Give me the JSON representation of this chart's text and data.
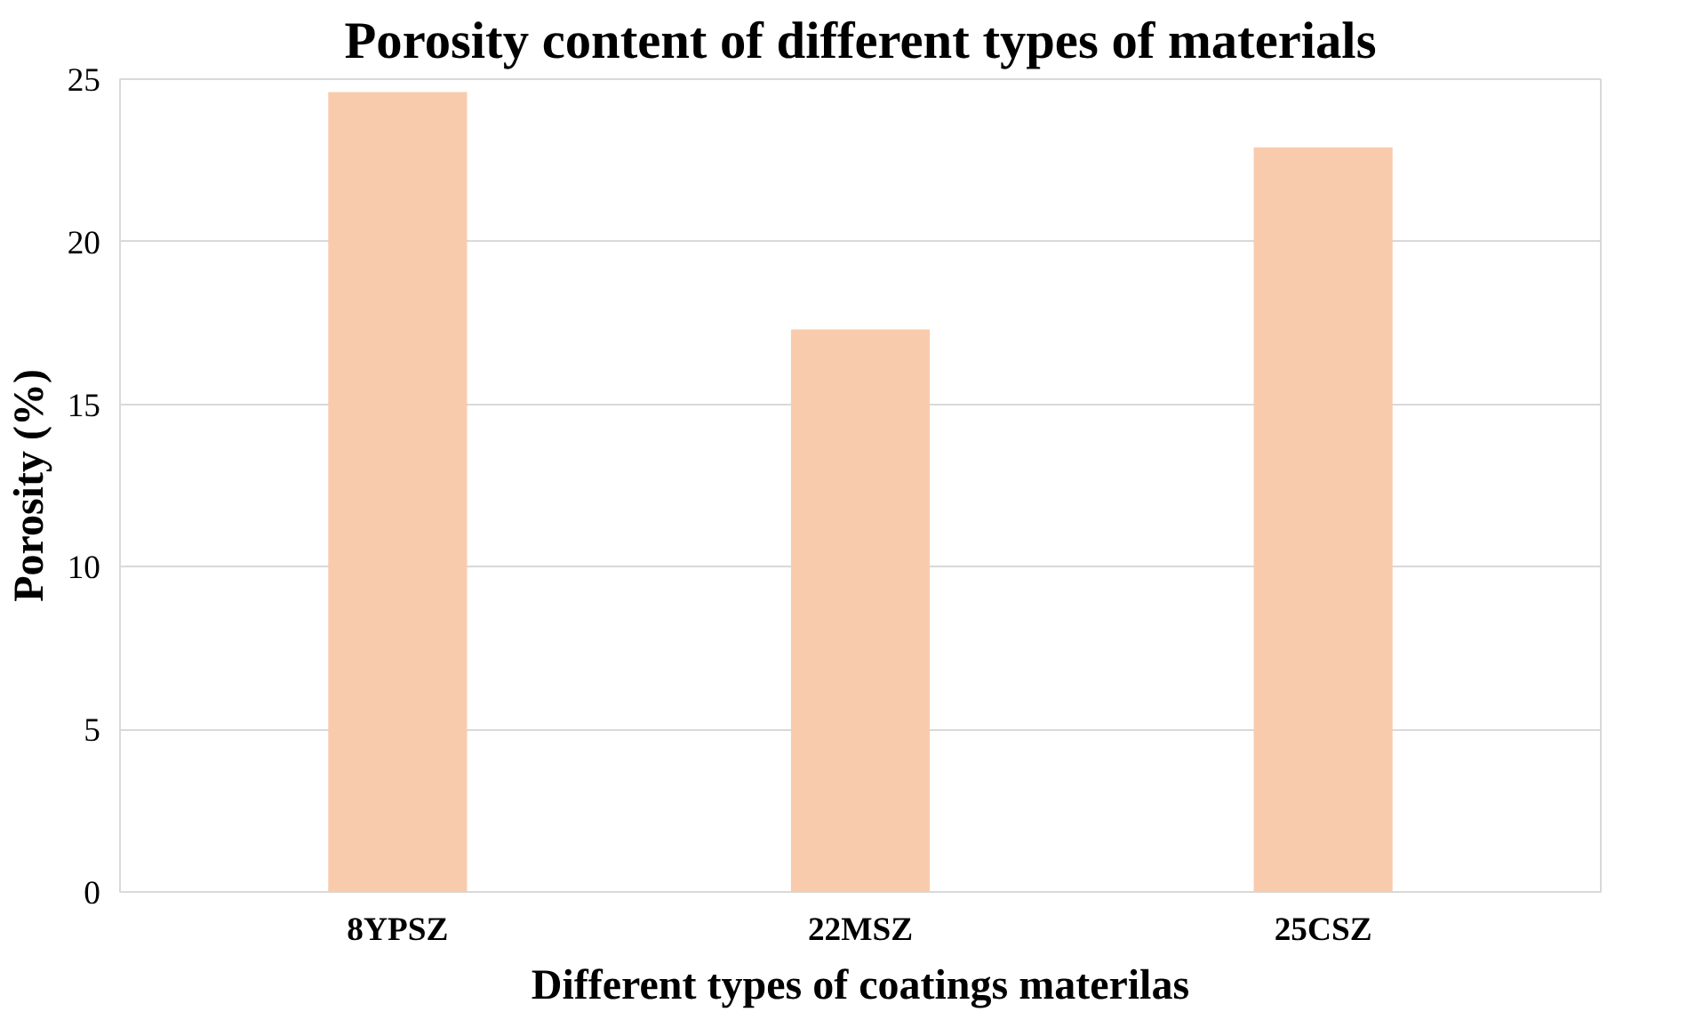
{
  "chart_data": {
    "type": "bar",
    "title": "Porosity content of different types of materials",
    "xlabel": "Different types of coatings materilas",
    "ylabel": "Porosity (%)",
    "categories": [
      "8YPSZ",
      "22MSZ",
      "25CSZ"
    ],
    "values": [
      24.6,
      17.3,
      22.9
    ],
    "color": "#f8cbad",
    "ylim": [
      0,
      25
    ],
    "yticks": [
      0,
      5,
      10,
      15,
      20,
      25
    ],
    "grid": "y"
  }
}
